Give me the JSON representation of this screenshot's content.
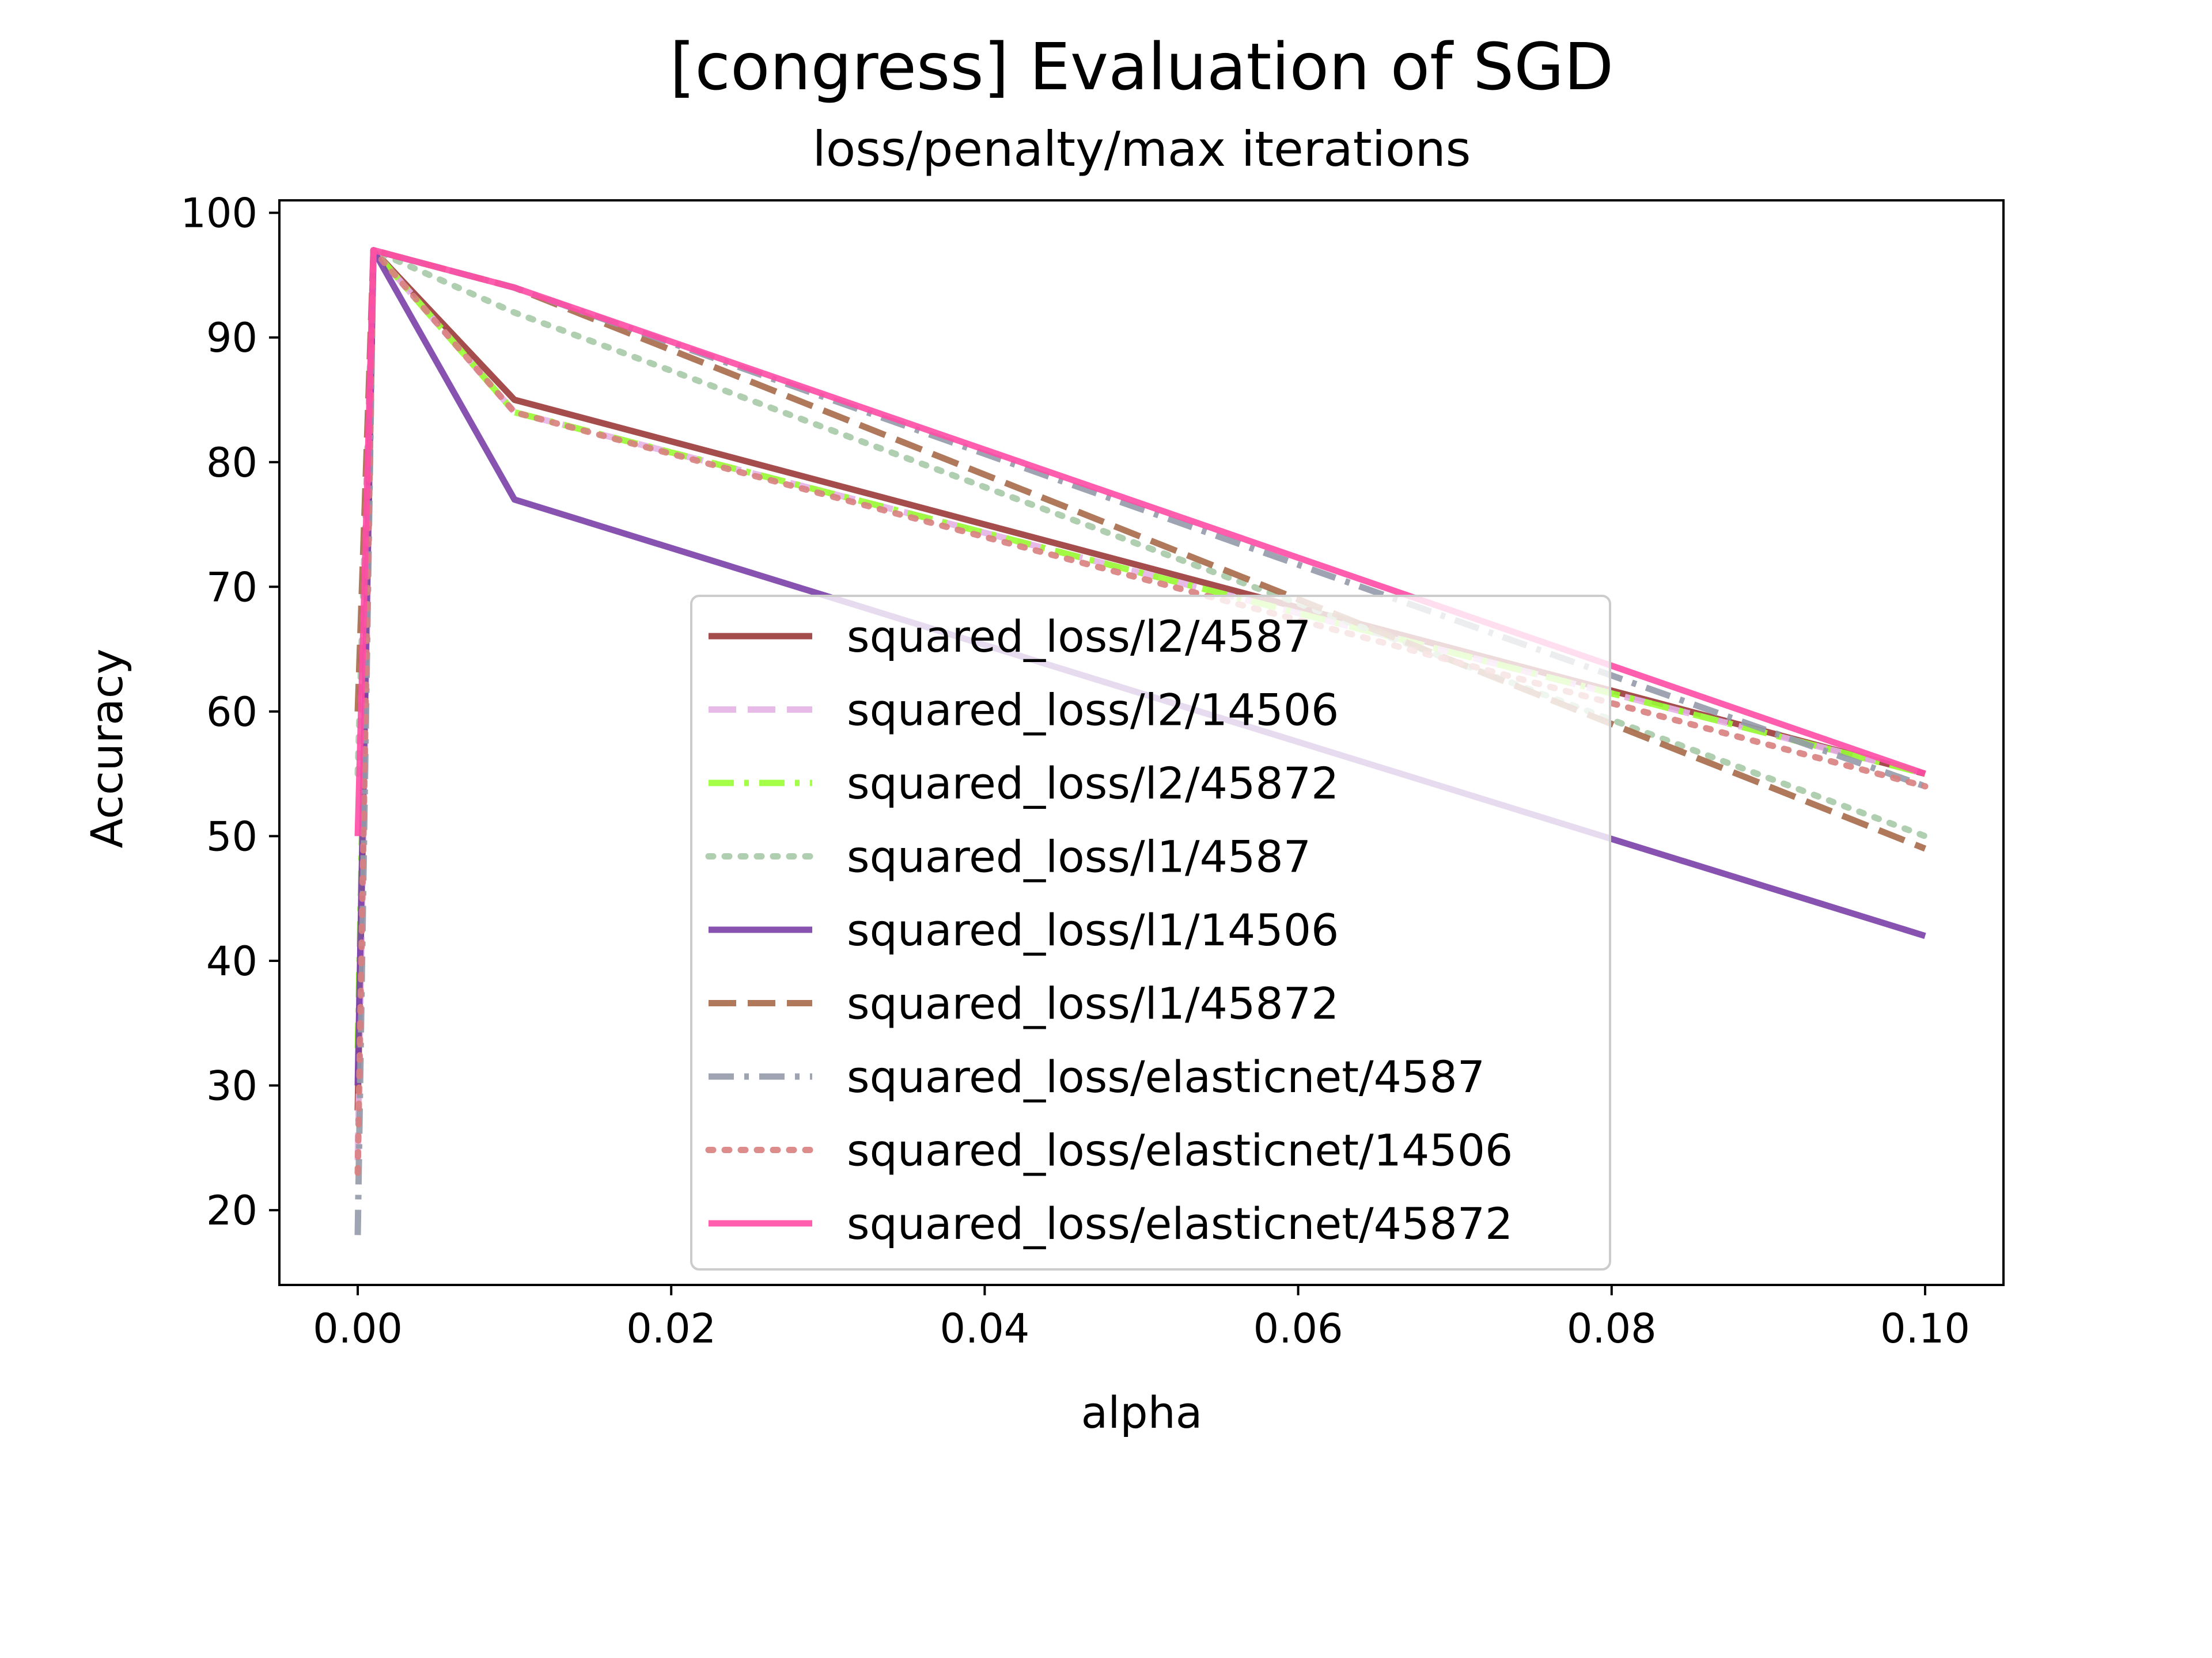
{
  "chart_data": {
    "type": "line",
    "title": "[congress] Evaluation of SGD",
    "subtitle": "loss/penalty/max iterations",
    "xlabel": "alpha",
    "ylabel": "Accuracy",
    "xlim": [
      -0.005,
      0.105
    ],
    "ylim": [
      14,
      101
    ],
    "xticks": [
      0.0,
      0.02,
      0.04,
      0.06,
      0.08,
      0.1
    ],
    "xtick_labels": [
      "0.00",
      "0.02",
      "0.04",
      "0.06",
      "0.08",
      "0.10"
    ],
    "yticks": [
      20,
      30,
      40,
      50,
      60,
      70,
      80,
      90,
      100
    ],
    "ytick_labels": [
      "20",
      "30",
      "40",
      "50",
      "60",
      "70",
      "80",
      "90",
      "100"
    ],
    "grid": false,
    "legend_position": "center-bottom",
    "x": [
      0.0,
      0.001,
      0.01,
      0.1
    ],
    "series": [
      {
        "name": "squared_loss/l2/4587",
        "values": [
          28,
          97,
          85,
          55
        ],
        "color": "#9b3a3a",
        "style": "solid"
      },
      {
        "name": "squared_loss/l2/14506",
        "values": [
          24,
          97,
          84,
          55
        ],
        "color": "#e6b3e6",
        "style": "dashed"
      },
      {
        "name": "squared_loss/l2/45872",
        "values": [
          33,
          97,
          84,
          55
        ],
        "color": "#99ff33",
        "style": "dashdot"
      },
      {
        "name": "squared_loss/l1/4587",
        "values": [
          55,
          97,
          92,
          50
        ],
        "color": "#a7c9a7",
        "style": "dotted"
      },
      {
        "name": "squared_loss/l1/14506",
        "values": [
          30,
          97,
          77,
          42
        ],
        "color": "#7b3fa8",
        "style": "solid"
      },
      {
        "name": "squared_loss/l1/45872",
        "values": [
          60,
          97,
          94,
          49
        ],
        "color": "#a86a4a",
        "style": "dashed"
      },
      {
        "name": "squared_loss/elasticnet/4587",
        "values": [
          18,
          97,
          94,
          54
        ],
        "color": "#939aa8",
        "style": "dashdot"
      },
      {
        "name": "squared_loss/elasticnet/14506",
        "values": [
          23,
          97,
          84,
          54
        ],
        "color": "#d97f7f",
        "style": "dotted"
      },
      {
        "name": "squared_loss/elasticnet/45872",
        "values": [
          50,
          97,
          94,
          55
        ],
        "color": "#ff4da6",
        "style": "solid"
      }
    ]
  }
}
